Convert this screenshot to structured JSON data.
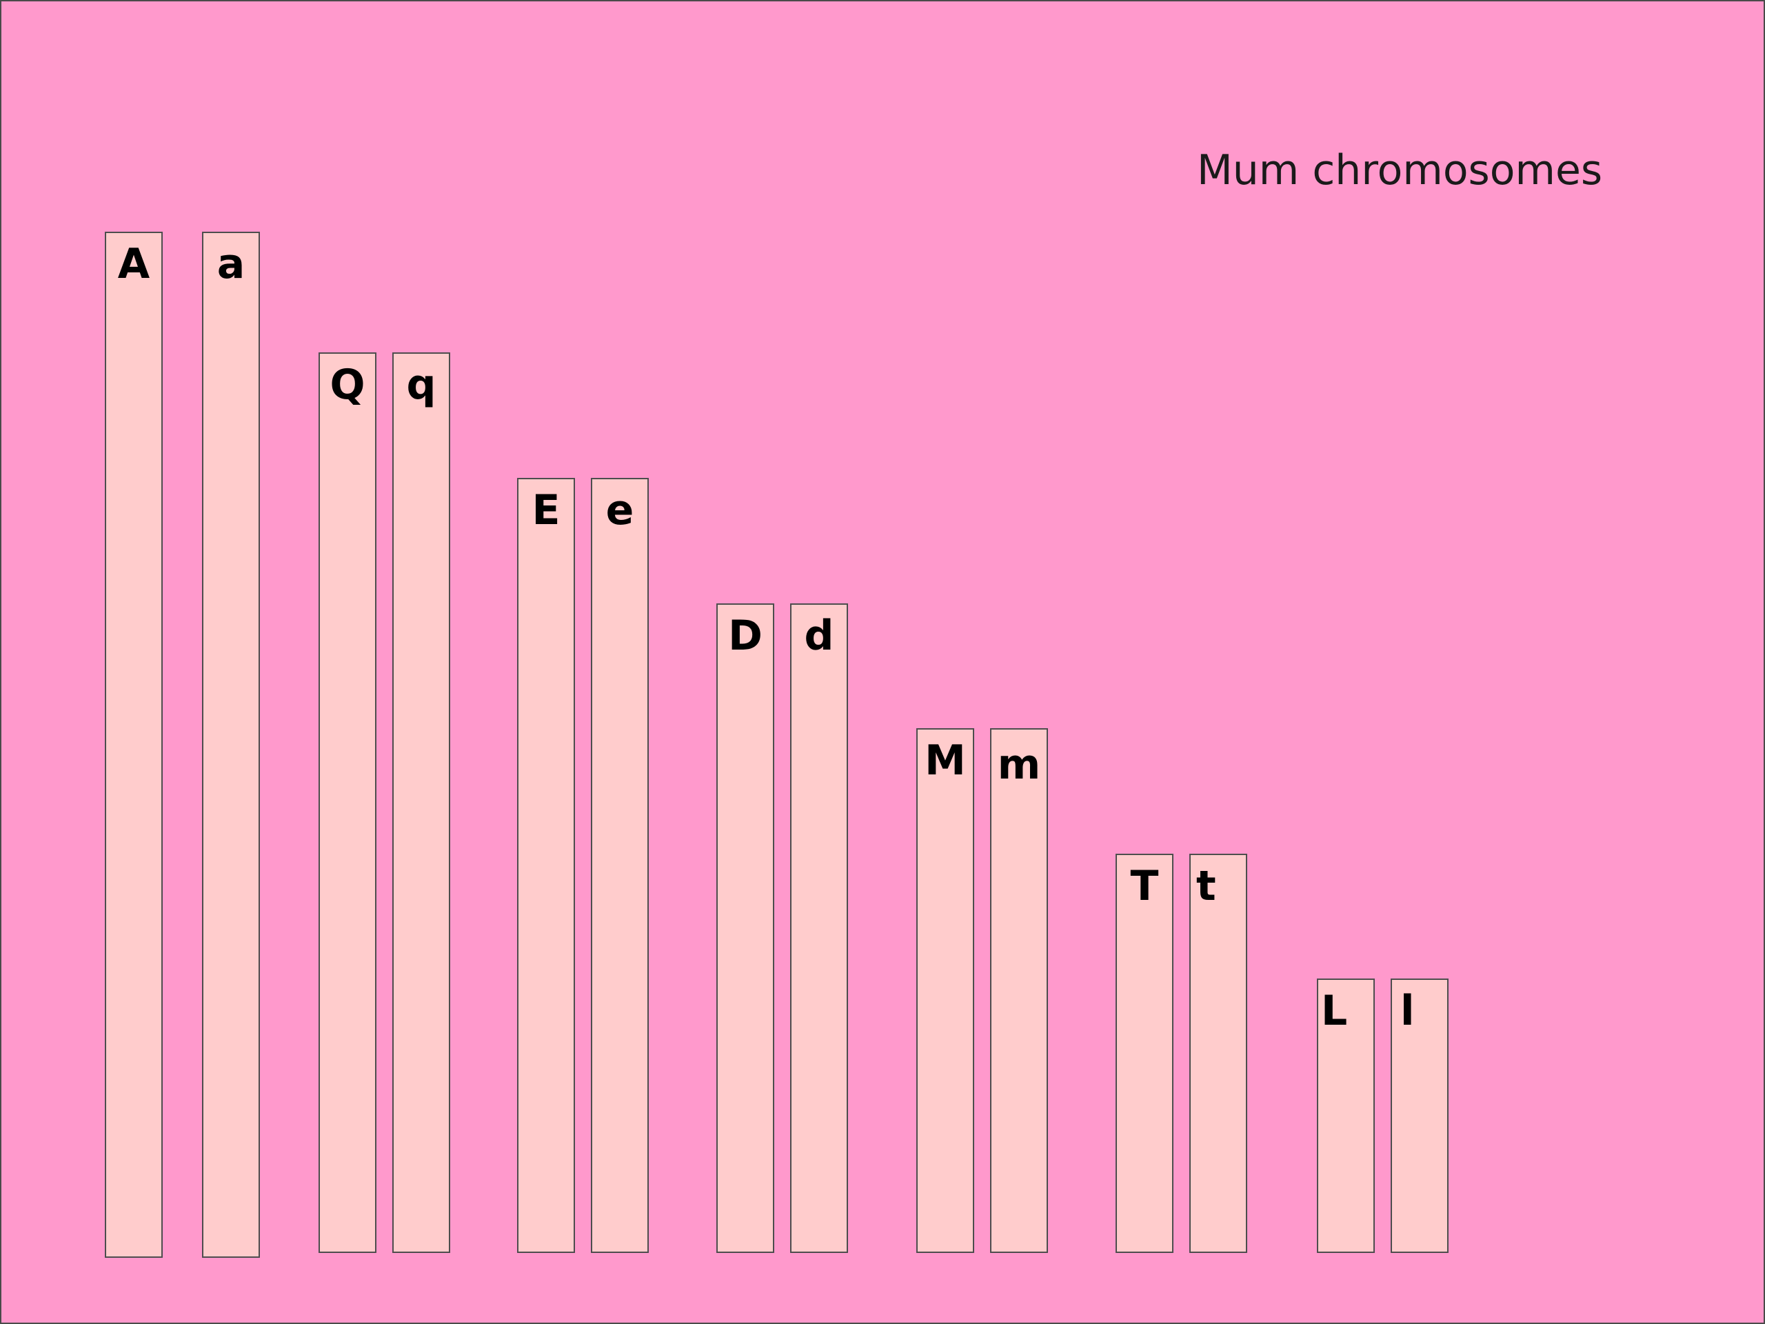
{
  "title": "Mum chromosomes",
  "colors": {
    "background": "#ff99cc",
    "chromosome_fill": "#ffcccc",
    "chromosome_border": "#4d4d4d",
    "text": "#000000"
  },
  "chromosomes": [
    {
      "allele": "A"
    },
    {
      "allele": "a"
    },
    {
      "allele": "Q"
    },
    {
      "allele": "q"
    },
    {
      "allele": "E"
    },
    {
      "allele": "e"
    },
    {
      "allele": "D"
    },
    {
      "allele": "d"
    },
    {
      "allele": "M"
    },
    {
      "allele": "m"
    },
    {
      "allele": "T"
    },
    {
      "allele": "t"
    },
    {
      "allele": "L"
    },
    {
      "allele": "l"
    }
  ]
}
